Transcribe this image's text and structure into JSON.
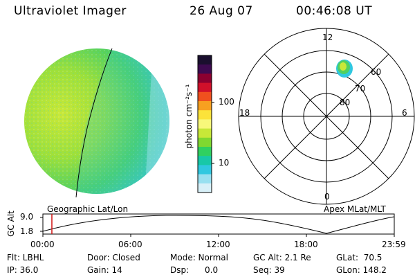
{
  "header": {
    "instrument": "Ultraviolet Imager",
    "date": "26 Aug 07",
    "time": "00:46:08 UT"
  },
  "colorbar": {
    "unit_label": "photon cm⁻²s⁻¹",
    "ticks": [
      "100",
      "10"
    ],
    "colors": [
      "#1a0f2e",
      "#3d0a50",
      "#8b0030",
      "#d0102a",
      "#f0501e",
      "#f7a020",
      "#fce33a",
      "#f8f87a",
      "#c8e838",
      "#80d830",
      "#30d060",
      "#18c8a8",
      "#30c8e0",
      "#98e0f0",
      "#d8f0f8"
    ]
  },
  "left_panel": {
    "label": "Geographic Lat/Lon"
  },
  "right_panel": {
    "label": "Apex MLat/MLT",
    "mlt_labels": {
      "top": "12",
      "left": "18",
      "right": "6",
      "bottom": "0"
    },
    "lat_labels": [
      "60",
      "70",
      "80"
    ]
  },
  "timeline": {
    "ylabel": "GC Alt",
    "ytick_top": "9.0",
    "ytick_bottom": "1.8",
    "x_ticks": [
      "00:00",
      "06:00",
      "12:00",
      "18:00",
      "23:59"
    ],
    "marker_time": "00:46"
  },
  "status": {
    "filter": "Flt: LBHL",
    "ip": "IP: 36.0",
    "door": "Door: Closed",
    "gain": "Gain: 14",
    "mode": "Mode: Normal",
    "dsp": "Dsp:      0.0",
    "gc_alt": "GC Alt: 2.1 Re",
    "seq": "Seq: 39",
    "glat": "GLat:  70.5",
    "glon": "GLon: 148.2"
  }
}
